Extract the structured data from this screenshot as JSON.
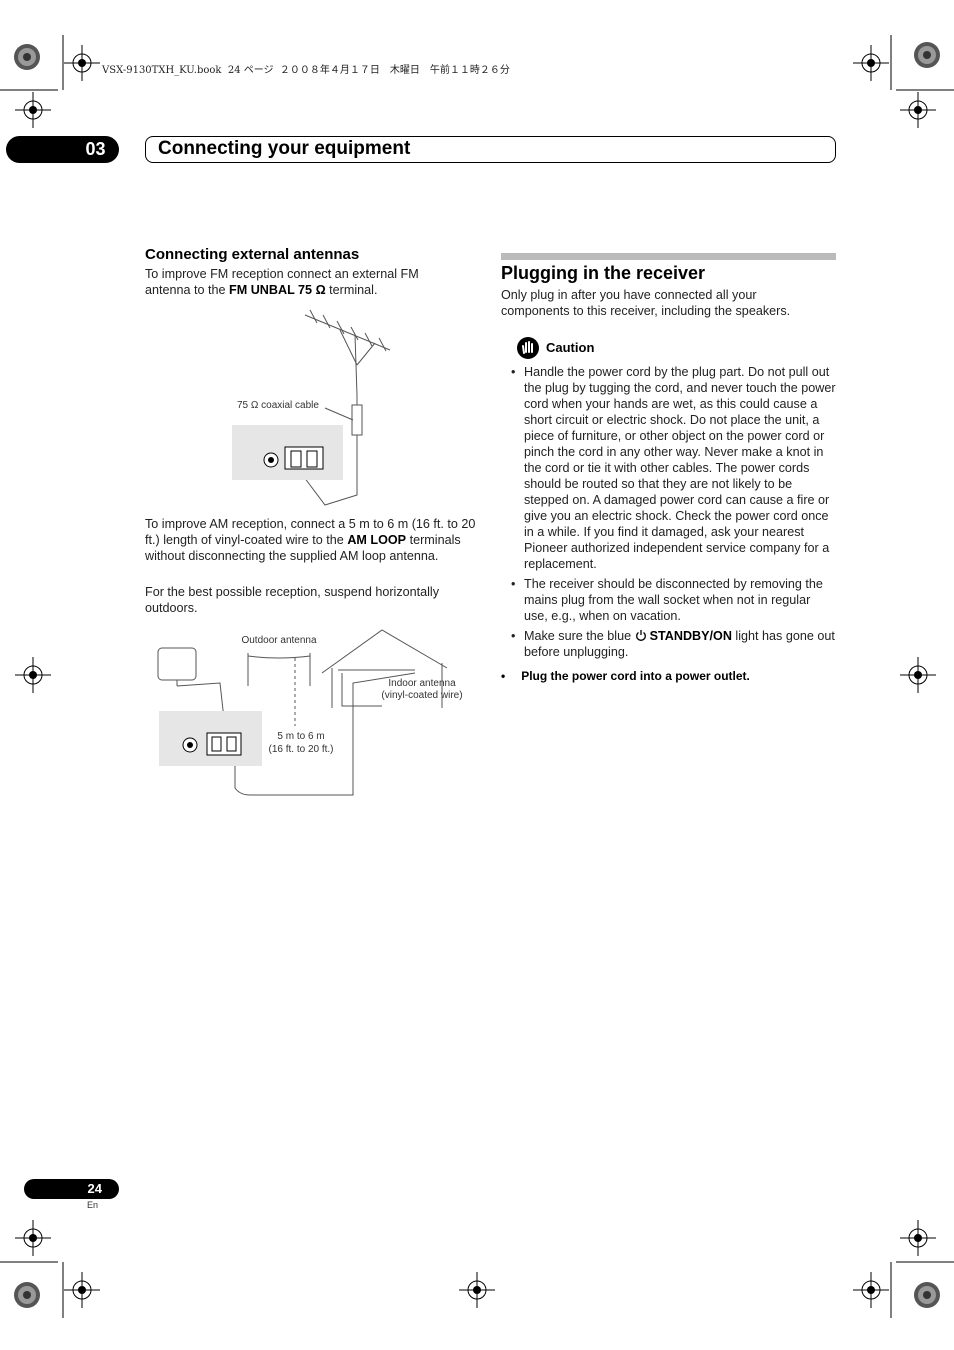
{
  "print_header": "VSX-9130TXH_KU.book  24 ページ  ２００８年４月１７日　木曜日　午前１１時２６分",
  "chapter": {
    "number": "03",
    "title": "Connecting your equipment"
  },
  "left": {
    "heading": "Connecting external antennas",
    "fm_intro": [
      "To improve FM reception connect an external FM antenna to the ",
      "FM UNBAL 75 Ω",
      " terminal."
    ],
    "fm_diagram": {
      "cable_label": "75 Ω coaxial cable"
    },
    "am_intro": [
      "To improve AM reception, connect a 5 m to 6 m (16 ft. to 20 ft.) length of vinyl-coated wire to the ",
      "AM LOOP",
      " terminals without disconnecting the supplied AM loop antenna."
    ],
    "suspend": "For the best possible reception, suspend horizontally outdoors.",
    "am_diagram": {
      "outdoor": "Outdoor antenna",
      "indoor": [
        "Indoor antenna",
        "(vinyl-coated wire)"
      ],
      "length": [
        "5 m to 6 m",
        "(16 ft. to 20 ft.)"
      ]
    }
  },
  "right": {
    "heading": "Plugging in the receiver",
    "intro": "Only plug in after you have connected all your components to this receiver, including the speakers.",
    "caution": {
      "title": "Caution",
      "bullets": [
        [
          "Handle the power cord by the plug part. Do not pull out the plug by tugging the cord, and never touch the power cord when your hands are wet, as this could cause a short circuit or electric shock. Do not place the unit, a piece of furniture, or other object on the power cord or pinch the cord in any other way. Never make a knot in the cord or tie it with other cables. The power cords should be routed so that they are not likely to be stepped on. A damaged power cord can cause a fire or give you an electric shock. Check the power cord once in a while. If you find it damaged, ask your nearest Pioneer authorized independent service company for a replacement."
        ],
        [
          "The receiver should be disconnected by removing the mains plug from the wall socket when not in regular use, e.g., when on vacation."
        ],
        [
          "Make sure the blue ",
          "STANDBY/ON",
          " light has gone out before unplugging."
        ]
      ]
    },
    "step": "Plug the power cord into a power outlet."
  },
  "footer": {
    "page": "24",
    "lang": "En"
  }
}
